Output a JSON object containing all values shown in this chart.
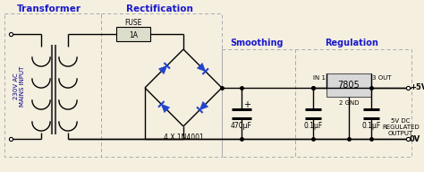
{
  "bg_color": "#f5efe0",
  "line_color": "#000000",
  "blue_color": "#2244cc",
  "gray_color": "#888888",
  "section_label_color": "#1a1acc",
  "transformer_label": "Transformer",
  "rectification_label": "Rectification",
  "smoothing_label": "Smoothing",
  "regulation_label": "Regulation",
  "ac_label": "230V AC\nMAINS INPUT",
  "fuse_label": "FUSE",
  "fuse_val": "1A",
  "diode_label": "4 X 1N4001",
  "cap1_label": "470μF",
  "cap2_label": "0.1μF",
  "cap3_label": "0.1μF",
  "ic_label": "7805",
  "ic_in": "IN 1",
  "ic_gnd": "2 GND",
  "ic_out": "3 OUT",
  "out_plus": "+5V",
  "out_gnd": "0V",
  "regulated_label": "5V DC\nREGULATED\nOUTPUT",
  "figsize": [
    4.74,
    1.92
  ],
  "dpi": 100
}
